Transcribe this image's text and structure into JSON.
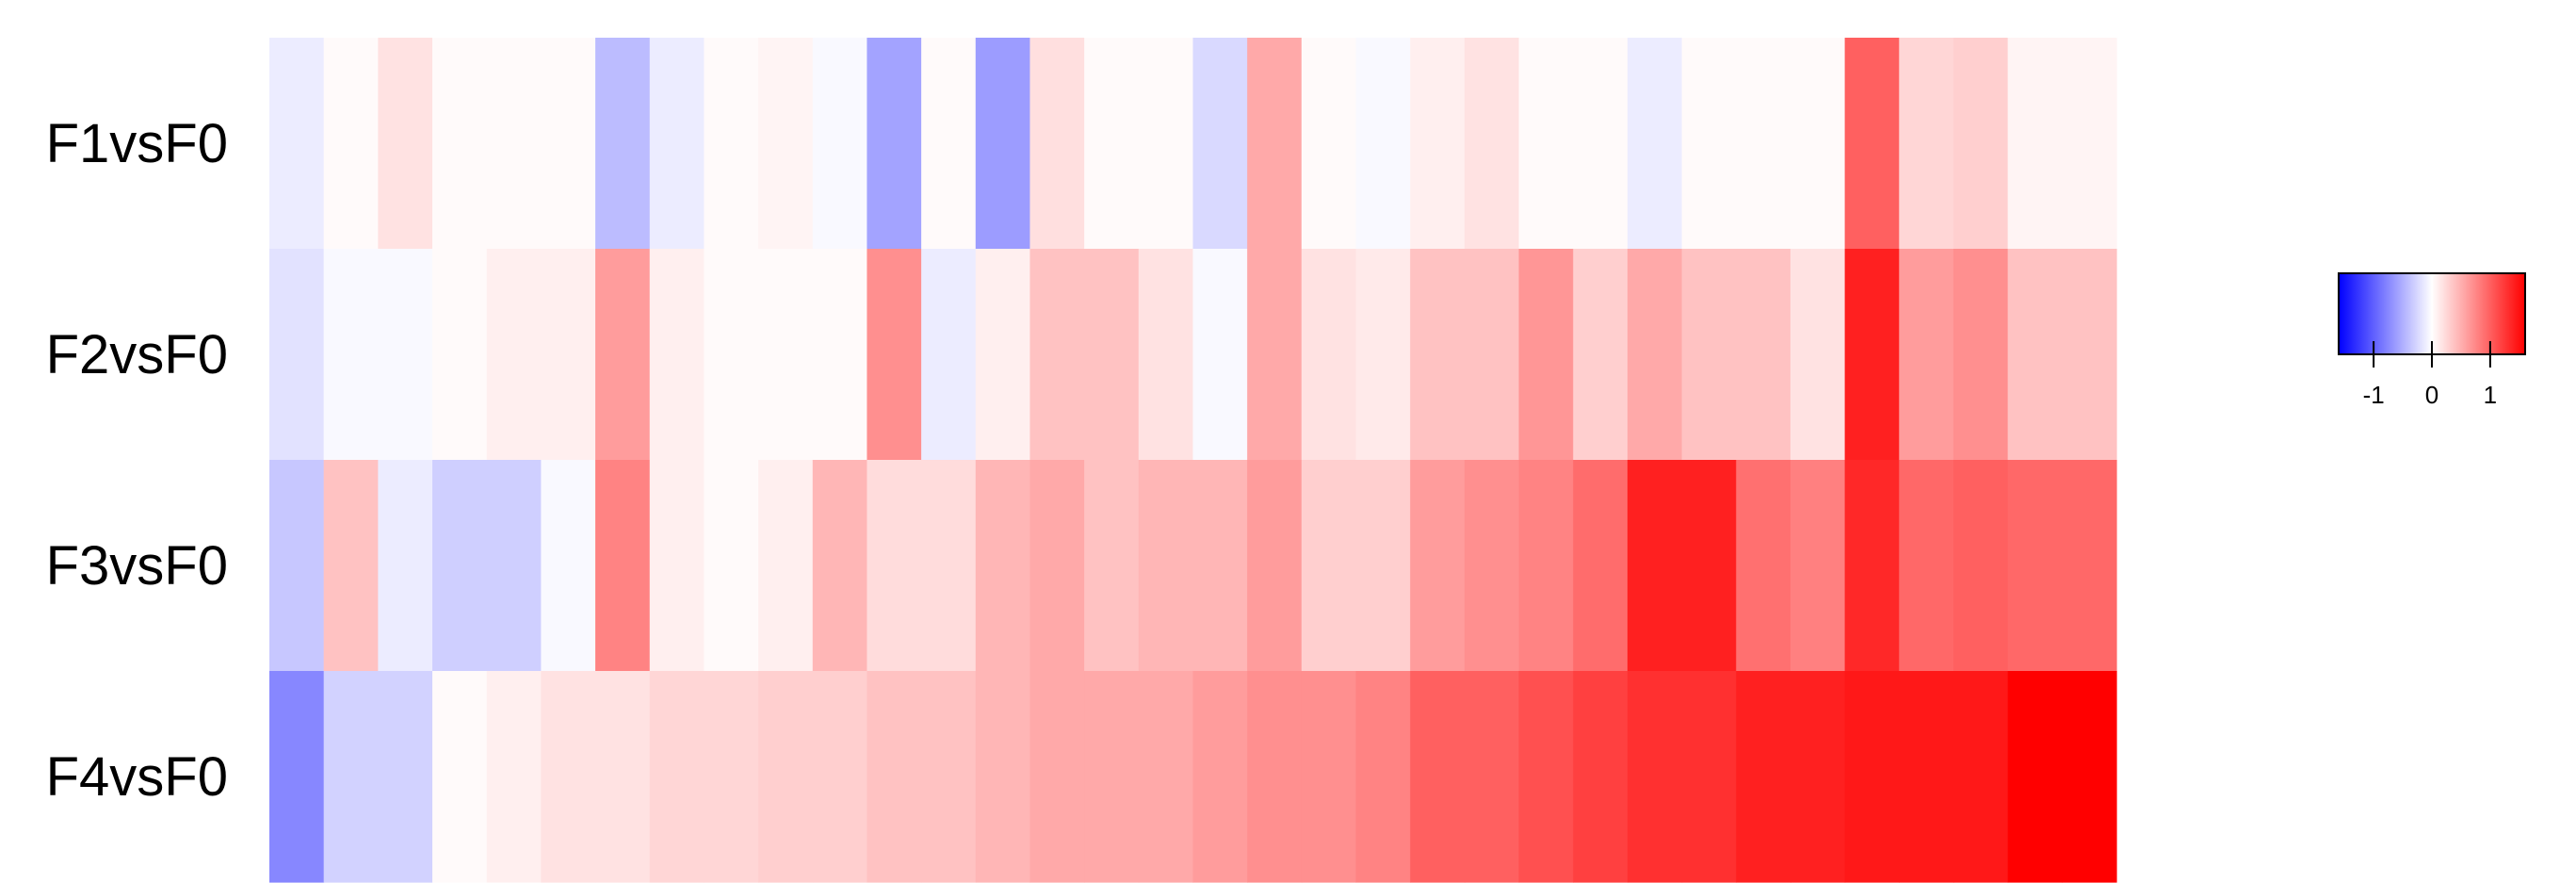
{
  "chart_data": {
    "type": "heatmap",
    "rows": [
      "F1vsF0",
      "F2vsF0",
      "F3vsF0",
      "F4vsF0"
    ],
    "n_columns": 34,
    "values": [
      [
        -0.12,
        0.03,
        0.18,
        0.03,
        0.03,
        0.03,
        -0.42,
        -0.12,
        0.03,
        0.07,
        -0.04,
        -0.58,
        0.03,
        -0.62,
        0.2,
        0.03,
        0.03,
        -0.24,
        0.54,
        0.03,
        -0.04,
        0.1,
        0.18,
        0.03,
        0.03,
        -0.12,
        0.03,
        0.03,
        0.03,
        1.0,
        0.26,
        0.3,
        0.07,
        0.07
      ],
      [
        -0.18,
        -0.04,
        -0.04,
        0.03,
        0.1,
        0.1,
        0.62,
        0.1,
        0.03,
        0.03,
        0.03,
        0.7,
        -0.12,
        0.1,
        0.38,
        0.38,
        0.18,
        -0.04,
        0.54,
        0.18,
        0.13,
        0.38,
        0.38,
        0.66,
        0.3,
        0.54,
        0.38,
        0.38,
        0.18,
        1.4,
        0.62,
        0.7,
        0.38,
        0.38
      ],
      [
        -0.35,
        0.38,
        -0.12,
        -0.3,
        -0.3,
        -0.04,
        0.78,
        0.1,
        0.03,
        0.1,
        0.46,
        0.22,
        0.22,
        0.46,
        0.54,
        0.38,
        0.46,
        0.46,
        0.62,
        0.3,
        0.3,
        0.62,
        0.7,
        0.78,
        0.92,
        1.4,
        1.4,
        0.9,
        0.8,
        1.35,
        0.95,
        1.0,
        0.95,
        0.95
      ],
      [
        -0.75,
        -0.28,
        -0.28,
        0.03,
        0.1,
        0.18,
        0.18,
        0.26,
        0.26,
        0.3,
        0.3,
        0.38,
        0.38,
        0.46,
        0.54,
        0.54,
        0.54,
        0.62,
        0.7,
        0.7,
        0.78,
        1.0,
        1.0,
        1.1,
        1.2,
        1.3,
        1.3,
        1.4,
        1.4,
        1.45,
        1.45,
        1.45,
        1.7,
        1.7
      ]
    ],
    "color_scale": {
      "min": -1.6,
      "max": 1.6,
      "low": "#0000ff",
      "mid": "#ffffff",
      "high": "#ff0000"
    },
    "legend": {
      "ticks": [
        "-1",
        "0",
        "1"
      ],
      "tick_values": [
        -1,
        0,
        1
      ],
      "placement": "right"
    }
  }
}
